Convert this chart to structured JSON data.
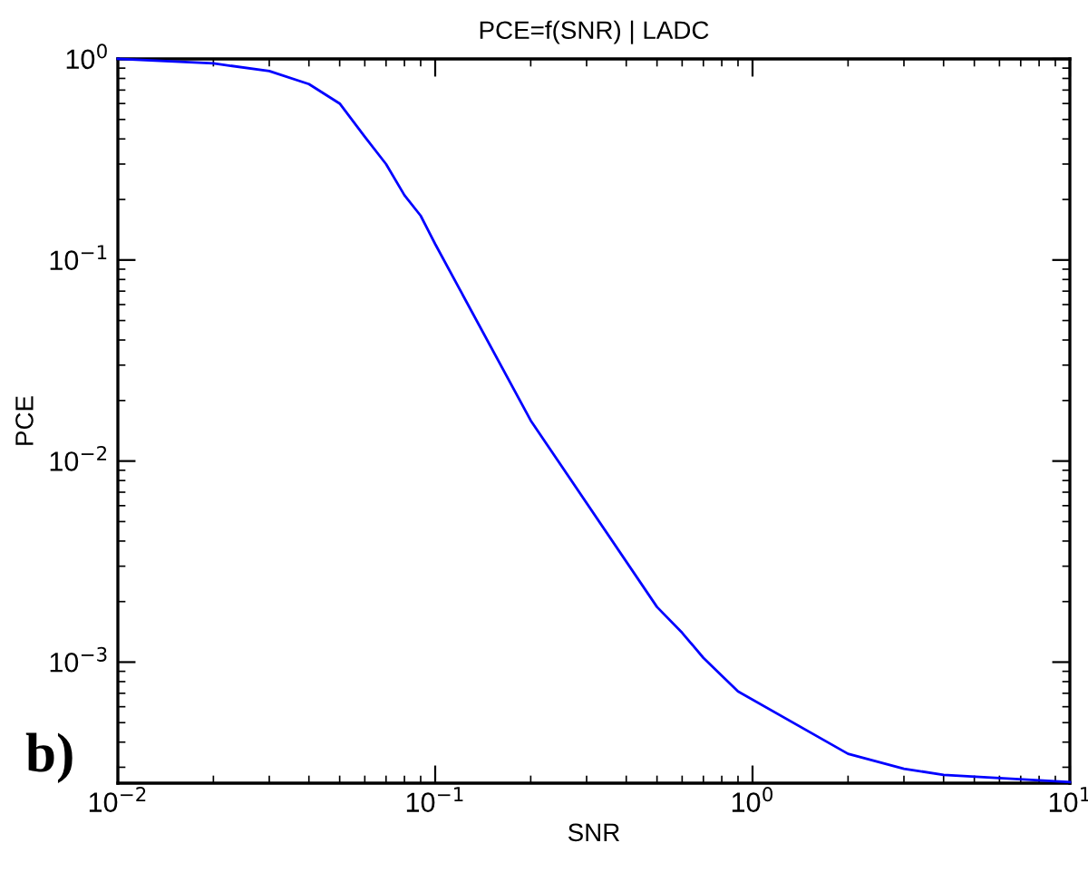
{
  "chart_data": {
    "type": "line",
    "title": "PCE=f(SNR) | LADC",
    "xlabel": "SNR",
    "ylabel": "PCE",
    "annotations": [
      "b)"
    ],
    "log": "xy",
    "x": [
      0.01,
      0.02,
      0.03,
      0.04,
      0.05,
      0.06,
      0.07,
      0.08,
      0.09,
      0.1,
      0.2,
      0.5,
      0.6,
      0.7,
      0.9,
      2,
      3,
      4,
      10
    ],
    "series": [
      {
        "color": "#0000ff",
        "values": [
          1.0,
          0.95,
          0.87,
          0.75,
          0.6,
          0.41,
          0.3,
          0.21,
          0.166,
          0.12,
          0.0159,
          0.00188,
          0.0014,
          0.00105,
          0.000715,
          0.00035,
          0.000295,
          0.000275,
          0.000253
        ]
      }
    ],
    "xlim": [
      0.01,
      10
    ],
    "ylim": [
      0.00025,
      1
    ],
    "xticks": [
      {
        "value": 0.01,
        "label": "10$^{−2}$"
      },
      {
        "value": 0.1,
        "label": "10$^{−1}$"
      },
      {
        "value": 1,
        "label": "10$^{0}$"
      },
      {
        "value": 10,
        "label": "10$^{1}$"
      }
    ],
    "yticks": [
      {
        "value": 0.001,
        "label": "10$^{−3}$"
      },
      {
        "value": 0.01,
        "label": "10$^{−2}$"
      },
      {
        "value": 0.1,
        "label": "10$^{−1}$"
      },
      {
        "value": 1,
        "label": "10$^{0}$"
      }
    ],
    "grid": false,
    "legend": false,
    "marker": "none",
    "line_style": "solid"
  }
}
